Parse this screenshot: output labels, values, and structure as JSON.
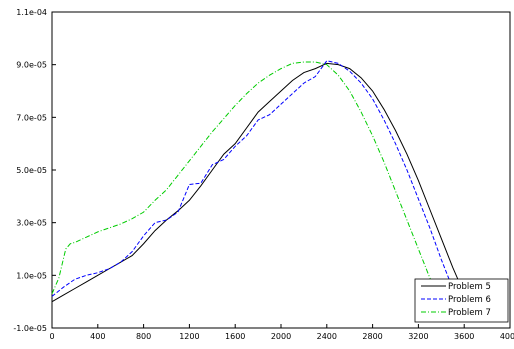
{
  "chart_data": {
    "type": "line",
    "title": "",
    "xlabel": "",
    "ylabel": "",
    "xlim": [
      0,
      4000
    ],
    "ylim": [
      -1e-05,
      0.00011
    ],
    "x_ticks": [
      0,
      400,
      800,
      1200,
      1600,
      2000,
      2400,
      2800,
      3200,
      3600,
      4000
    ],
    "x_tick_labels": [
      "0",
      "400",
      "800",
      "1200",
      "1600",
      "2000",
      "2400",
      "2800",
      "3200",
      "3600",
      "4000"
    ],
    "y_ticks": [
      -1e-05,
      1e-05,
      3e-05,
      5e-05,
      7e-05,
      9e-05,
      0.00011
    ],
    "y_tick_labels": [
      "-1.0e-05",
      "1.0e-05",
      "3.0e-05",
      "5.0e-05",
      "7.0e-05",
      "9.0e-05",
      "1.1e-04"
    ],
    "grid": false,
    "legend_position": "bottom-right",
    "series": [
      {
        "name": "Problem 5",
        "color": "#000000",
        "dash": "solid",
        "x": [
          0,
          100,
          200,
          300,
          400,
          500,
          600,
          700,
          800,
          900,
          1000,
          1100,
          1200,
          1300,
          1400,
          1500,
          1600,
          1700,
          1800,
          1900,
          2000,
          2100,
          2200,
          2300,
          2400,
          2500,
          2600,
          2700,
          2800,
          2900,
          3000,
          3100,
          3200,
          3300,
          3400,
          3500,
          3600,
          3640
        ],
        "y": [
          0.0,
          2.5e-06,
          5e-06,
          7.5e-06,
          1e-05,
          1.25e-05,
          1.5e-05,
          1.75e-05,
          2.2e-05,
          2.7e-05,
          3.1e-05,
          3.45e-05,
          3.85e-05,
          4.4e-05,
          5e-05,
          5.6e-05,
          6e-05,
          6.6e-05,
          7.2e-05,
          7.6e-05,
          8e-05,
          8.4e-05,
          8.7e-05,
          8.85e-05,
          9.05e-05,
          9e-05,
          8.85e-05,
          8.5e-05,
          8e-05,
          7.3e-05,
          6.5e-05,
          5.6e-05,
          4.6e-05,
          3.5e-05,
          2.4e-05,
          1.3e-05,
          3e-06,
          1e-06
        ]
      },
      {
        "name": "Problem 6",
        "color": "#0000ff",
        "dash": "dashed",
        "x": [
          0,
          100,
          200,
          300,
          400,
          500,
          600,
          700,
          800,
          900,
          1000,
          1100,
          1200,
          1300,
          1400,
          1500,
          1600,
          1700,
          1800,
          1900,
          2000,
          2100,
          2200,
          2300,
          2400,
          2500,
          2600,
          2700,
          2800,
          2900,
          3000,
          3100,
          3200,
          3300,
          3400,
          3500,
          3540
        ],
        "y": [
          2e-06,
          5.5e-06,
          8.5e-06,
          1e-05,
          1.1e-05,
          1.25e-05,
          1.5e-05,
          1.9e-05,
          2.5e-05,
          3e-05,
          3.1e-05,
          3.4e-05,
          4.45e-05,
          4.5e-05,
          5.2e-05,
          5.4e-05,
          5.9e-05,
          6.3e-05,
          6.9e-05,
          7.1e-05,
          7.5e-05,
          7.9e-05,
          8.3e-05,
          8.55e-05,
          9.15e-05,
          9.05e-05,
          8.75e-05,
          8.3e-05,
          7.7e-05,
          6.9e-05,
          6e-05,
          5e-05,
          3.9e-05,
          2.8e-05,
          1.6e-05,
          5e-06,
          1e-06
        ]
      },
      {
        "name": "Problem 7",
        "color": "#00cc00",
        "dash": "dashdot",
        "x": [
          0,
          60,
          120,
          160,
          200,
          300,
          400,
          500,
          600,
          700,
          800,
          900,
          1000,
          1100,
          1200,
          1300,
          1400,
          1500,
          1600,
          1700,
          1800,
          1900,
          2000,
          2100,
          2200,
          2300,
          2400,
          2500,
          2600,
          2700,
          2800,
          2900,
          3000,
          3100,
          3200,
          3300,
          3400,
          3440
        ],
        "y": [
          3e-06,
          9e-06,
          2e-05,
          2.2e-05,
          2.25e-05,
          2.45e-05,
          2.65e-05,
          2.8e-05,
          2.95e-05,
          3.15e-05,
          3.4e-05,
          3.85e-05,
          4.25e-05,
          4.8e-05,
          5.35e-05,
          5.9e-05,
          6.45e-05,
          6.95e-05,
          7.45e-05,
          7.9e-05,
          8.3e-05,
          8.6e-05,
          8.85e-05,
          9.05e-05,
          9.1e-05,
          9.1e-05,
          9e-05,
          8.6e-05,
          8e-05,
          7.2e-05,
          6.3e-05,
          5.3e-05,
          4.2e-05,
          3.1e-05,
          2e-05,
          9e-06,
          1e-06,
          -1e-06
        ]
      }
    ]
  }
}
